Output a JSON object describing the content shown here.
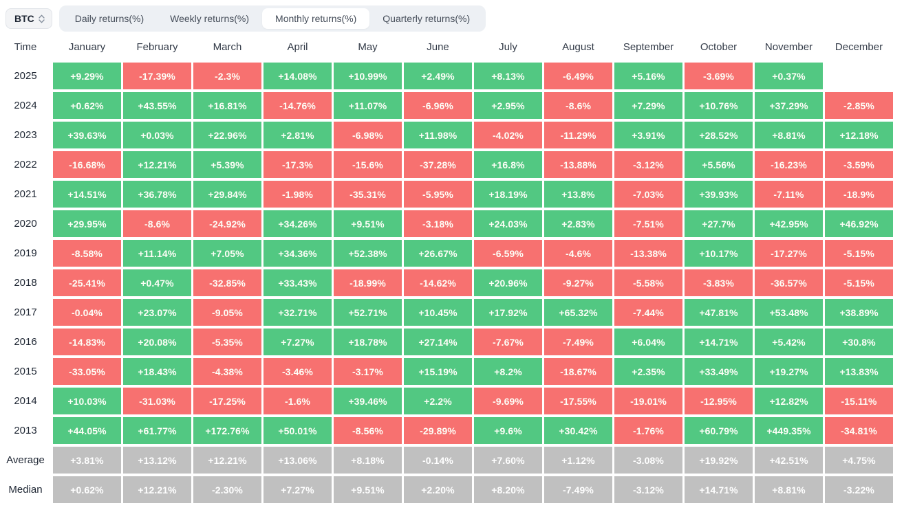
{
  "controls": {
    "symbol_select": {
      "value": "BTC"
    },
    "tabs": [
      {
        "label": "Daily returns(%)",
        "active": false
      },
      {
        "label": "Weekly returns(%)",
        "active": false
      },
      {
        "label": "Monthly returns(%)",
        "active": true
      },
      {
        "label": "Quarterly returns(%)",
        "active": false
      }
    ]
  },
  "colors": {
    "positive": "#52c882",
    "negative": "#f77170",
    "neutral": "#c0c0c0",
    "tabbar_bg": "#edf0f4",
    "active_tab_bg": "#ffffff"
  },
  "chart_data": {
    "type": "heatmap",
    "title": "BTC Monthly returns(%)",
    "value_unit": "%",
    "columns": [
      "Time",
      "January",
      "February",
      "March",
      "April",
      "May",
      "June",
      "July",
      "August",
      "September",
      "October",
      "November",
      "December"
    ],
    "rows": [
      {
        "label": "2025",
        "kind": "year",
        "values": [
          "+9.29%",
          "-17.39%",
          "-2.3%",
          "+14.08%",
          "+10.99%",
          "+2.49%",
          "+8.13%",
          "-6.49%",
          "+5.16%",
          "-3.69%",
          "+0.37%",
          null
        ]
      },
      {
        "label": "2024",
        "kind": "year",
        "values": [
          "+0.62%",
          "+43.55%",
          "+16.81%",
          "-14.76%",
          "+11.07%",
          "-6.96%",
          "+2.95%",
          "-8.6%",
          "+7.29%",
          "+10.76%",
          "+37.29%",
          "-2.85%"
        ]
      },
      {
        "label": "2023",
        "kind": "year",
        "values": [
          "+39.63%",
          "+0.03%",
          "+22.96%",
          "+2.81%",
          "-6.98%",
          "+11.98%",
          "-4.02%",
          "-11.29%",
          "+3.91%",
          "+28.52%",
          "+8.81%",
          "+12.18%"
        ]
      },
      {
        "label": "2022",
        "kind": "year",
        "values": [
          "-16.68%",
          "+12.21%",
          "+5.39%",
          "-17.3%",
          "-15.6%",
          "-37.28%",
          "+16.8%",
          "-13.88%",
          "-3.12%",
          "+5.56%",
          "-16.23%",
          "-3.59%"
        ]
      },
      {
        "label": "2021",
        "kind": "year",
        "values": [
          "+14.51%",
          "+36.78%",
          "+29.84%",
          "-1.98%",
          "-35.31%",
          "-5.95%",
          "+18.19%",
          "+13.8%",
          "-7.03%",
          "+39.93%",
          "-7.11%",
          "-18.9%"
        ]
      },
      {
        "label": "2020",
        "kind": "year",
        "values": [
          "+29.95%",
          "-8.6%",
          "-24.92%",
          "+34.26%",
          "+9.51%",
          "-3.18%",
          "+24.03%",
          "+2.83%",
          "-7.51%",
          "+27.7%",
          "+42.95%",
          "+46.92%"
        ]
      },
      {
        "label": "2019",
        "kind": "year",
        "values": [
          "-8.58%",
          "+11.14%",
          "+7.05%",
          "+34.36%",
          "+52.38%",
          "+26.67%",
          "-6.59%",
          "-4.6%",
          "-13.38%",
          "+10.17%",
          "-17.27%",
          "-5.15%"
        ]
      },
      {
        "label": "2018",
        "kind": "year",
        "values": [
          "-25.41%",
          "+0.47%",
          "-32.85%",
          "+33.43%",
          "-18.99%",
          "-14.62%",
          "+20.96%",
          "-9.27%",
          "-5.58%",
          "-3.83%",
          "-36.57%",
          "-5.15%"
        ]
      },
      {
        "label": "2017",
        "kind": "year",
        "values": [
          "-0.04%",
          "+23.07%",
          "-9.05%",
          "+32.71%",
          "+52.71%",
          "+10.45%",
          "+17.92%",
          "+65.32%",
          "-7.44%",
          "+47.81%",
          "+53.48%",
          "+38.89%"
        ]
      },
      {
        "label": "2016",
        "kind": "year",
        "values": [
          "-14.83%",
          "+20.08%",
          "-5.35%",
          "+7.27%",
          "+18.78%",
          "+27.14%",
          "-7.67%",
          "-7.49%",
          "+6.04%",
          "+14.71%",
          "+5.42%",
          "+30.8%"
        ]
      },
      {
        "label": "2015",
        "kind": "year",
        "values": [
          "-33.05%",
          "+18.43%",
          "-4.38%",
          "-3.46%",
          "-3.17%",
          "+15.19%",
          "+8.2%",
          "-18.67%",
          "+2.35%",
          "+33.49%",
          "+19.27%",
          "+13.83%"
        ]
      },
      {
        "label": "2014",
        "kind": "year",
        "values": [
          "+10.03%",
          "-31.03%",
          "-17.25%",
          "-1.6%",
          "+39.46%",
          "+2.2%",
          "-9.69%",
          "-17.55%",
          "-19.01%",
          "-12.95%",
          "+12.82%",
          "-15.11%"
        ]
      },
      {
        "label": "2013",
        "kind": "year",
        "values": [
          "+44.05%",
          "+61.77%",
          "+172.76%",
          "+50.01%",
          "-8.56%",
          "-29.89%",
          "+9.6%",
          "+30.42%",
          "-1.76%",
          "+60.79%",
          "+449.35%",
          "-34.81%"
        ]
      },
      {
        "label": "Average",
        "kind": "summary",
        "values": [
          "+3.81%",
          "+13.12%",
          "+12.21%",
          "+13.06%",
          "+8.18%",
          "-0.14%",
          "+7.60%",
          "+1.12%",
          "-3.08%",
          "+19.92%",
          "+42.51%",
          "+4.75%"
        ]
      },
      {
        "label": "Median",
        "kind": "summary",
        "values": [
          "+0.62%",
          "+12.21%",
          "-2.30%",
          "+7.27%",
          "+9.51%",
          "+2.20%",
          "+8.20%",
          "-7.49%",
          "-3.12%",
          "+14.71%",
          "+8.81%",
          "-3.22%"
        ]
      }
    ],
    "legend": "green = positive month, red = negative month, gray = aggregate rows",
    "grid": "cells separated by white gaps"
  }
}
